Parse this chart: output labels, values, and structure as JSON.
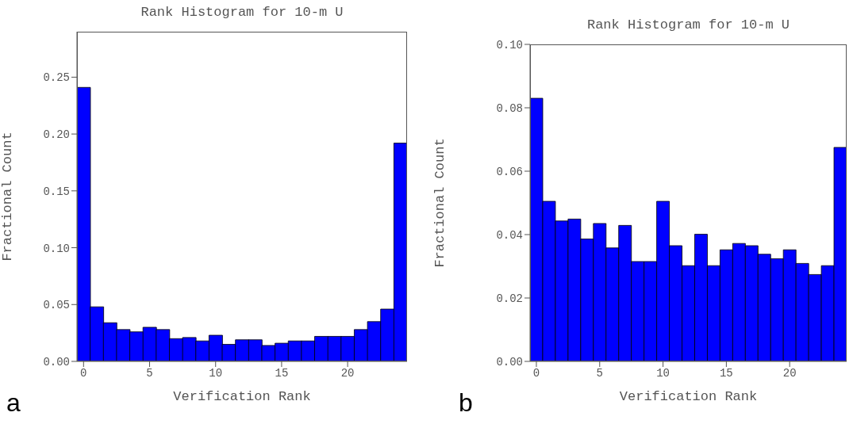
{
  "chart_data": [
    {
      "type": "histogram",
      "title": "Rank Histogram for 10-m U",
      "xlabel": "Verification Rank",
      "ylabel": "Fractional Count",
      "annotations": [
        "a"
      ],
      "color": "#0000ff",
      "bins": [
        -0.5,
        0.5,
        1.5,
        2.5,
        3.5,
        4.5,
        5.5,
        6.5,
        7.5,
        8.5,
        9.5,
        10.5,
        11.5,
        12.5,
        13.5,
        14.5,
        15.5,
        16.5,
        17.5,
        18.5,
        19.5,
        20.5,
        21.5,
        22.5,
        23.5,
        24.5
      ],
      "values": [
        0.241,
        0.048,
        0.034,
        0.028,
        0.026,
        0.03,
        0.028,
        0.02,
        0.021,
        0.018,
        0.023,
        0.015,
        0.019,
        0.019,
        0.014,
        0.016,
        0.018,
        0.018,
        0.022,
        0.022,
        0.022,
        0.028,
        0.035,
        0.046,
        0.192
      ],
      "xlim": [
        -0.5,
        24.5
      ],
      "xticks": [
        0,
        5,
        10,
        15,
        20
      ],
      "ylim": [
        0,
        0.29
      ],
      "yticks": [
        {
          "value": 0,
          "label": "0.00"
        },
        {
          "value": 0.05,
          "label": "0.05"
        },
        {
          "value": 0.1,
          "label": "0.10"
        },
        {
          "value": 0.15,
          "label": "0.15"
        },
        {
          "value": 0.2,
          "label": "0.20"
        },
        {
          "value": 0.25,
          "label": "0.25"
        }
      ]
    },
    {
      "type": "histogram",
      "title": "Rank Histogram for 10-m U",
      "xlabel": "Verification Rank",
      "ylabel": "Fractional Count",
      "annotations": [
        "b"
      ],
      "color": "#0000ff",
      "bins": [
        -0.5,
        0.5,
        1.5,
        2.5,
        3.5,
        4.5,
        5.5,
        6.5,
        7.5,
        8.5,
        9.5,
        10.5,
        11.5,
        12.5,
        13.5,
        14.5,
        15.5,
        16.5,
        17.5,
        18.5,
        19.5,
        20.5,
        21.5,
        22.5,
        23.5,
        24.5
      ],
      "values": [
        0.083,
        0.0505,
        0.0443,
        0.0449,
        0.0386,
        0.0435,
        0.0358,
        0.0429,
        0.0315,
        0.0315,
        0.0505,
        0.0365,
        0.0302,
        0.0401,
        0.0302,
        0.0352,
        0.0372,
        0.0365,
        0.0338,
        0.0324,
        0.0352,
        0.0309,
        0.0274,
        0.0302,
        0.0675
      ],
      "xlim": [
        -0.5,
        24.5
      ],
      "xticks": [
        0,
        5,
        10,
        15,
        20
      ],
      "ylim": [
        0,
        0.1
      ],
      "yticks": [
        {
          "value": 0,
          "label": "0.00"
        },
        {
          "value": 0.02,
          "label": "0.02"
        },
        {
          "value": 0.04,
          "label": "0.04"
        },
        {
          "value": 0.06,
          "label": "0.06"
        },
        {
          "value": 0.08,
          "label": "0.08"
        },
        {
          "value": 0.1,
          "label": "0.10"
        }
      ]
    }
  ]
}
